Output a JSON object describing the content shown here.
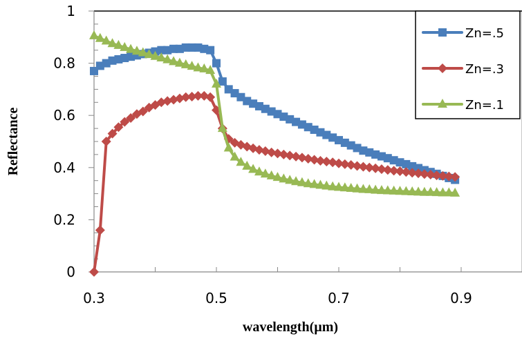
{
  "chart_data": {
    "type": "line",
    "title": "",
    "xlabel": "wavelength(µm)",
    "ylabel": "Reflectance",
    "xlim": [
      0.3,
      1.0
    ],
    "ylim": [
      0,
      1
    ],
    "x_ticks": [
      0.3,
      0.5,
      0.7,
      0.9
    ],
    "x_tick_labels": [
      "0.3",
      "0.5",
      "0.7",
      "0.9"
    ],
    "x_minor_step": 0.1,
    "y_ticks": [
      0,
      0.2,
      0.4,
      0.6,
      0.8,
      1
    ],
    "y_tick_labels": [
      "0",
      "0.2",
      "0.4",
      "0.6",
      "0.8",
      "1"
    ],
    "y_minor_step": 0.05,
    "grid": false,
    "legend_position": "top-right",
    "x": [
      0.3,
      0.31,
      0.32,
      0.33,
      0.34,
      0.35,
      0.36,
      0.37,
      0.38,
      0.39,
      0.4,
      0.41,
      0.42,
      0.43,
      0.44,
      0.45,
      0.46,
      0.47,
      0.48,
      0.49,
      0.5,
      0.51,
      0.52,
      0.53,
      0.54,
      0.55,
      0.56,
      0.57,
      0.58,
      0.59,
      0.6,
      0.61,
      0.62,
      0.63,
      0.64,
      0.65,
      0.66,
      0.67,
      0.68,
      0.69,
      0.7,
      0.71,
      0.72,
      0.73,
      0.74,
      0.75,
      0.76,
      0.77,
      0.78,
      0.79,
      0.8,
      0.81,
      0.82,
      0.83,
      0.84,
      0.85,
      0.86,
      0.87,
      0.88,
      0.89
    ],
    "series": [
      {
        "name": "Zn=.5",
        "color": "#4a7ebb",
        "marker": "square",
        "values": [
          0.77,
          0.79,
          0.8,
          0.81,
          0.815,
          0.82,
          0.825,
          0.83,
          0.835,
          0.84,
          0.845,
          0.85,
          0.85,
          0.855,
          0.855,
          0.86,
          0.86,
          0.86,
          0.855,
          0.85,
          0.8,
          0.73,
          0.7,
          0.685,
          0.67,
          0.655,
          0.645,
          0.635,
          0.625,
          0.615,
          0.605,
          0.595,
          0.585,
          0.575,
          0.565,
          0.555,
          0.545,
          0.535,
          0.525,
          0.515,
          0.505,
          0.495,
          0.485,
          0.475,
          0.465,
          0.458,
          0.45,
          0.443,
          0.436,
          0.428,
          0.42,
          0.413,
          0.405,
          0.398,
          0.39,
          0.383,
          0.376,
          0.368,
          0.36,
          0.353
        ]
      },
      {
        "name": "Zn=.3",
        "color": "#be4b48",
        "marker": "diamond",
        "values": [
          0.0,
          0.16,
          0.5,
          0.53,
          0.555,
          0.575,
          0.59,
          0.605,
          0.615,
          0.63,
          0.64,
          0.65,
          0.655,
          0.66,
          0.665,
          0.67,
          0.672,
          0.675,
          0.675,
          0.67,
          0.62,
          0.55,
          0.51,
          0.495,
          0.487,
          0.48,
          0.474,
          0.468,
          0.463,
          0.458,
          0.454,
          0.45,
          0.446,
          0.442,
          0.438,
          0.434,
          0.43,
          0.426,
          0.423,
          0.42,
          0.416,
          0.413,
          0.41,
          0.406,
          0.403,
          0.4,
          0.397,
          0.394,
          0.391,
          0.388,
          0.386,
          0.383,
          0.38,
          0.378,
          0.375,
          0.373,
          0.37,
          0.368,
          0.366,
          0.364
        ]
      },
      {
        "name": "Zn=.1",
        "color": "#98b954",
        "marker": "triangle",
        "values": [
          0.905,
          0.895,
          0.885,
          0.875,
          0.868,
          0.86,
          0.853,
          0.846,
          0.84,
          0.833,
          0.826,
          0.82,
          0.813,
          0.806,
          0.8,
          0.794,
          0.788,
          0.782,
          0.778,
          0.772,
          0.72,
          0.55,
          0.475,
          0.44,
          0.42,
          0.405,
          0.393,
          0.383,
          0.375,
          0.368,
          0.362,
          0.356,
          0.351,
          0.346,
          0.342,
          0.338,
          0.335,
          0.332,
          0.329,
          0.326,
          0.324,
          0.322,
          0.32,
          0.318,
          0.316,
          0.315,
          0.313,
          0.312,
          0.311,
          0.31,
          0.309,
          0.308,
          0.307,
          0.306,
          0.305,
          0.305,
          0.304,
          0.303,
          0.303,
          0.302
        ]
      }
    ]
  }
}
